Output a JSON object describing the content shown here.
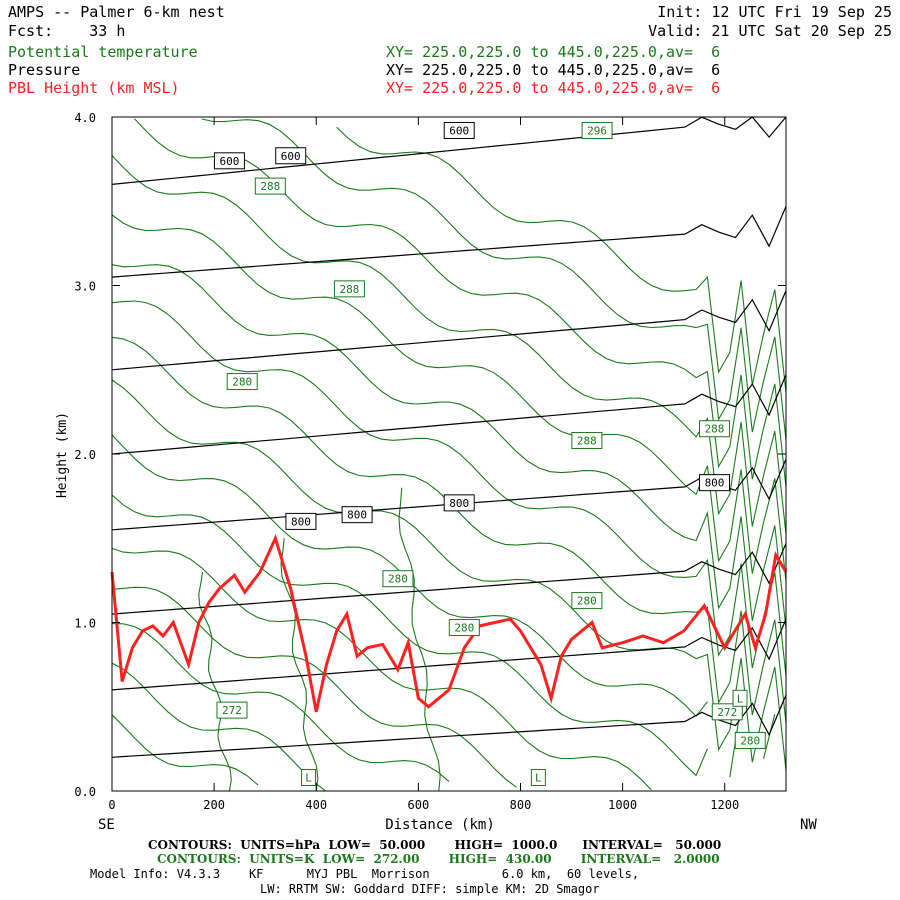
{
  "header": {
    "title": "AMPS -- Palmer 6-km nest",
    "forecast": "Fcst:    33 h",
    "init": "Init: 12 UTC Fri 19 Sep 25",
    "valid": "Valid: 21 UTC Sat 20 Sep 25"
  },
  "fields": [
    {
      "name": "Potential temperature",
      "xy": "XY= 225.0,225.0 to 445.0,225.0,av=  6",
      "color": "#1a7a1a"
    },
    {
      "name": "Pressure",
      "xy": "XY= 225.0,225.0 to 445.0,225.0,av=  6",
      "color": "#000000"
    },
    {
      "name": "PBL Height (km MSL)",
      "xy": "XY= 225.0,225.0 to 445.0,225.0,av=  6",
      "color": "#ff2020"
    }
  ],
  "footer": {
    "black_contours": "CONTOURS:  UNITS=hPa  LOW=  50.000       HIGH=  1000.0      INTERVAL=   50.000",
    "green_contours": "CONTOURS:  UNITS=K  LOW=  272.00       HIGH=  430.00       INTERVAL=   2.0000",
    "model_info": "Model Info: V4.3.3    KF      MYJ PBL  Morrison          6.0 km,  60 levels,",
    "model_info2": "LW: RRTM SW: Goddard DIFF: simple KM: 2D Smagor"
  },
  "chart_data": {
    "type": "line",
    "xlabel": "Distance (km)",
    "ylabel": "Height (km)",
    "xlim": [
      0,
      1320
    ],
    "ylim": [
      0,
      4.0
    ],
    "x_ticks": [
      "0",
      "200",
      "400",
      "600",
      "800",
      "1000",
      "1200"
    ],
    "y_ticks": [
      "0.0",
      "1.0",
      "2.0",
      "3.0",
      "4.0"
    ],
    "left_end_label": "SE",
    "right_end_label": "NW",
    "series": [
      {
        "name": "PBL Height (km MSL)",
        "color": "#ff2020",
        "x": [
          0,
          20,
          40,
          60,
          80,
          100,
          120,
          150,
          170,
          190,
          210,
          240,
          260,
          290,
          320,
          350,
          380,
          400,
          420,
          440,
          460,
          480,
          500,
          530,
          560,
          580,
          600,
          620,
          640,
          660,
          690,
          720,
          750,
          780,
          800,
          820,
          840,
          860,
          880,
          900,
          940,
          960,
          1000,
          1040,
          1080,
          1120,
          1160,
          1200,
          1220,
          1240,
          1260,
          1280,
          1300,
          1320
        ],
        "values": [
          1.3,
          0.65,
          0.85,
          0.95,
          0.98,
          0.92,
          1.0,
          0.75,
          1.0,
          1.12,
          1.2,
          1.28,
          1.18,
          1.3,
          1.5,
          1.2,
          0.8,
          0.47,
          0.75,
          0.95,
          1.05,
          0.8,
          0.85,
          0.87,
          0.72,
          0.88,
          0.55,
          0.5,
          0.55,
          0.6,
          0.85,
          0.98,
          1.0,
          1.02,
          0.95,
          0.85,
          0.75,
          0.55,
          0.8,
          0.9,
          1.0,
          0.85,
          0.88,
          0.92,
          0.88,
          0.95,
          1.1,
          0.85,
          0.95,
          1.05,
          0.85,
          1.05,
          1.4,
          1.3
        ]
      },
      {
        "name": "Pressure",
        "color": "#000000",
        "x": [
          0,
          1320
        ],
        "levels": [
          {
            "y0": 0.2,
            "y1": 0.45
          },
          {
            "y0": 0.6,
            "y1": 0.9
          },
          {
            "y0": 1.05,
            "y1": 1.35
          },
          {
            "y0": 1.55,
            "y1": 1.85
          },
          {
            "y0": 2.0,
            "y1": 2.35
          },
          {
            "y0": 2.5,
            "y1": 2.85
          },
          {
            "y0": 3.05,
            "y1": 3.35
          },
          {
            "y0": 3.6,
            "y1": 4.0
          }
        ],
        "labels": [
          {
            "text": "600",
            "x": 230,
            "y": 3.74
          },
          {
            "text": "600",
            "x": 350,
            "y": 3.77
          },
          {
            "text": "600",
            "x": 680,
            "y": 3.92
          },
          {
            "text": "800",
            "x": 370,
            "y": 1.6
          },
          {
            "text": "800",
            "x": 480,
            "y": 1.64
          },
          {
            "text": "800",
            "x": 680,
            "y": 1.71
          },
          {
            "text": "800",
            "x": 1180,
            "y": 1.83
          }
        ]
      },
      {
        "name": "Potential temperature",
        "color": "#1a7a1a",
        "labels": [
          {
            "text": "296",
            "x": 950,
            "y": 3.92
          },
          {
            "text": "288",
            "x": 310,
            "y": 3.59
          },
          {
            "text": "288",
            "x": 465,
            "y": 2.98
          },
          {
            "text": "288",
            "x": 930,
            "y": 2.08
          },
          {
            "text": "288",
            "x": 1180,
            "y": 2.15
          },
          {
            "text": "280",
            "x": 255,
            "y": 2.43
          },
          {
            "text": "280",
            "x": 560,
            "y": 1.26
          },
          {
            "text": "280",
            "x": 690,
            "y": 0.97
          },
          {
            "text": "280",
            "x": 930,
            "y": 1.13
          },
          {
            "text": "280",
            "x": 1250,
            "y": 0.3
          },
          {
            "text": "272",
            "x": 235,
            "y": 0.48
          },
          {
            "text": "272",
            "x": 1205,
            "y": 0.47
          }
        ],
        "lows": [
          {
            "text": "L",
            "x": 385,
            "y": 0.08
          },
          {
            "text": "L",
            "x": 835,
            "y": 0.08
          },
          {
            "text": "L",
            "x": 1230,
            "y": 0.55
          }
        ]
      }
    ]
  }
}
